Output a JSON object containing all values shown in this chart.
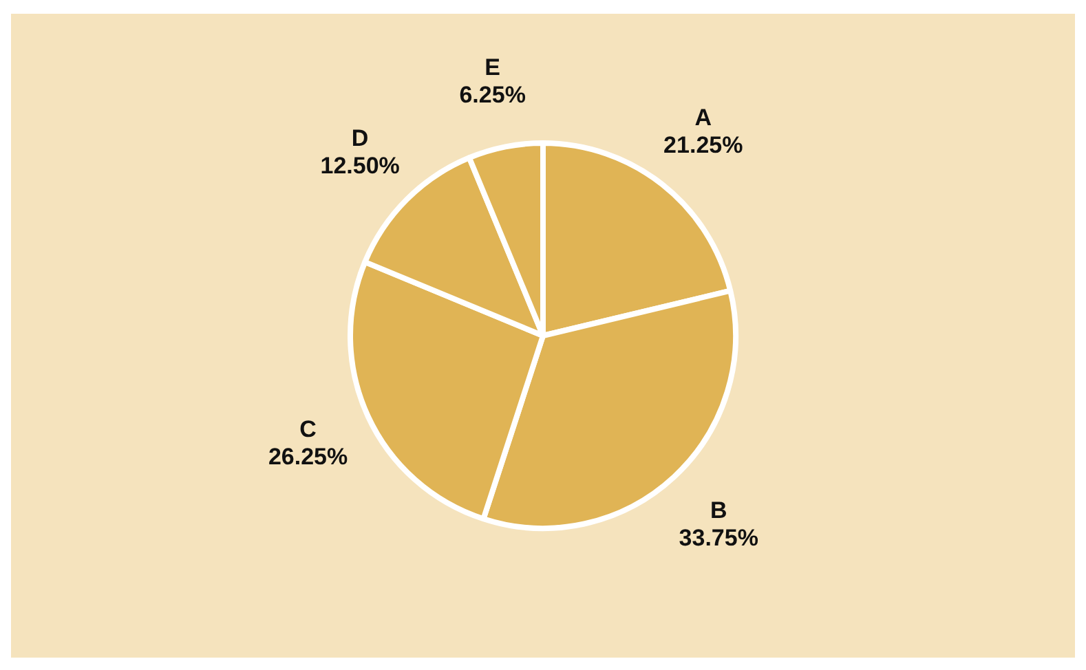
{
  "chart_data": {
    "type": "pie",
    "categories": [
      "A",
      "B",
      "C",
      "D",
      "E"
    ],
    "values": [
      21.25,
      33.75,
      26.25,
      12.5,
      6.25
    ],
    "colors": [
      "#e0b455",
      "#e0b455",
      "#e0b455",
      "#e0b455",
      "#e0b455"
    ],
    "value_labels": [
      "21.25%",
      "33.75%",
      "26.25%",
      "12.50%",
      "6.25%"
    ],
    "legend": false
  }
}
